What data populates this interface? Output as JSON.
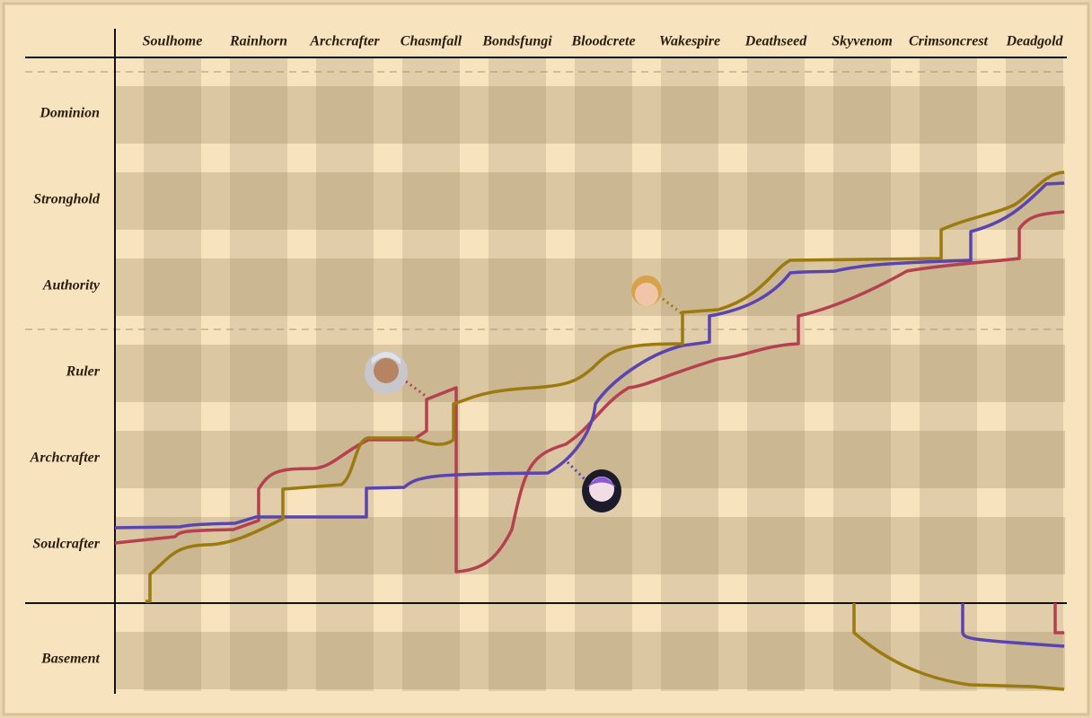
{
  "columns": [
    "Soulhome",
    "Rainhorn",
    "Archcrafter",
    "Chasmfall",
    "Bondsfungi",
    "Bloodcrete",
    "Wakespire",
    "Deathseed",
    "Skyvenom",
    "Crimsoncrest",
    "Deadgold"
  ],
  "rows": [
    "Dominion",
    "Stronghold",
    "Authority",
    "Ruler",
    "Archcrafter",
    "Soulcrafter",
    "Basement"
  ]
}
